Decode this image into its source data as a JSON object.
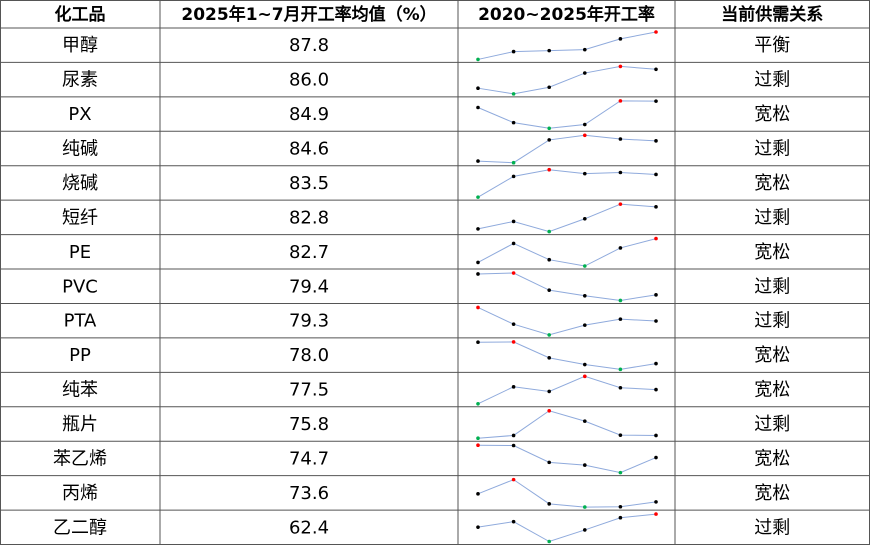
{
  "header": [
    "化工品",
    "2025年1~7月开工率均值（%）",
    "2020~2025年开工率",
    "当前供需关系"
  ],
  "sparkline": {
    "line_color": "#8faadc",
    "max_color": "#ff0000",
    "min_color": "#00b050",
    "point_color": "#000000"
  },
  "rows": [
    {
      "name": "甲醇",
      "value": "87.8",
      "trend": [
        80.1,
        82.5,
        82.8,
        83.1,
        86.4,
        88.5
      ],
      "relation": "平衡"
    },
    {
      "name": "尿素",
      "value": "86.0",
      "trend": [
        75.0,
        73.2,
        75.3,
        79.8,
        81.9,
        81.0
      ],
      "relation": "过剩"
    },
    {
      "name": "PX",
      "value": "84.9",
      "trend": [
        83.0,
        78.2,
        76.4,
        77.6,
        85.1,
        85.0
      ],
      "relation": "宽松"
    },
    {
      "name": "纯碱",
      "value": "84.6",
      "trend": [
        72.1,
        71.2,
        83.5,
        86.0,
        84.0,
        83.0
      ],
      "relation": "过剩"
    },
    {
      "name": "烧碱",
      "value": "83.5",
      "trend": [
        73.5,
        81.0,
        83.4,
        82.0,
        82.4,
        81.7
      ],
      "relation": "宽松"
    },
    {
      "name": "短纤",
      "value": "82.8",
      "trend": [
        75.5,
        78.0,
        74.6,
        78.9,
        83.8,
        82.9
      ],
      "relation": "过剩"
    },
    {
      "name": "PE",
      "value": "82.7",
      "trend": [
        78.2,
        84.5,
        79.1,
        77.0,
        83.0,
        86.1
      ],
      "relation": "宽松"
    },
    {
      "name": "PVC",
      "value": "79.4",
      "trend": [
        79.5,
        79.8,
        74.3,
        72.5,
        71.0,
        72.8
      ],
      "relation": "过剩"
    },
    {
      "name": "PTA",
      "value": "79.3",
      "trend": [
        84.8,
        79.5,
        76.1,
        79.2,
        81.1,
        80.5
      ],
      "relation": "过剩"
    },
    {
      "name": "PP",
      "value": "78.0",
      "trend": [
        86.0,
        86.1,
        81.1,
        79.0,
        77.5,
        79.3
      ],
      "relation": "宽松"
    },
    {
      "name": "纯苯",
      "value": "77.5",
      "trend": [
        69.0,
        74.5,
        73.0,
        77.9,
        74.2,
        73.6
      ],
      "relation": "宽松"
    },
    {
      "name": "瓶片",
      "value": "75.8",
      "trend": [
        68.5,
        69.4,
        77.5,
        74.1,
        69.5,
        69.4
      ],
      "relation": "过剩"
    },
    {
      "name": "苯乙烯",
      "value": "74.7",
      "trend": [
        80.5,
        80.4,
        74.8,
        73.9,
        71.4,
        76.4
      ],
      "relation": "宽松"
    },
    {
      "name": "丙烯",
      "value": "73.6",
      "trend": [
        83.0,
        87.4,
        79.9,
        78.9,
        79.0,
        80.5
      ],
      "relation": "宽松"
    },
    {
      "name": "乙二醇",
      "value": "62.4",
      "trend": [
        60.2,
        62.0,
        55.5,
        59.3,
        63.3,
        64.5
      ],
      "relation": "过剩"
    }
  ]
}
